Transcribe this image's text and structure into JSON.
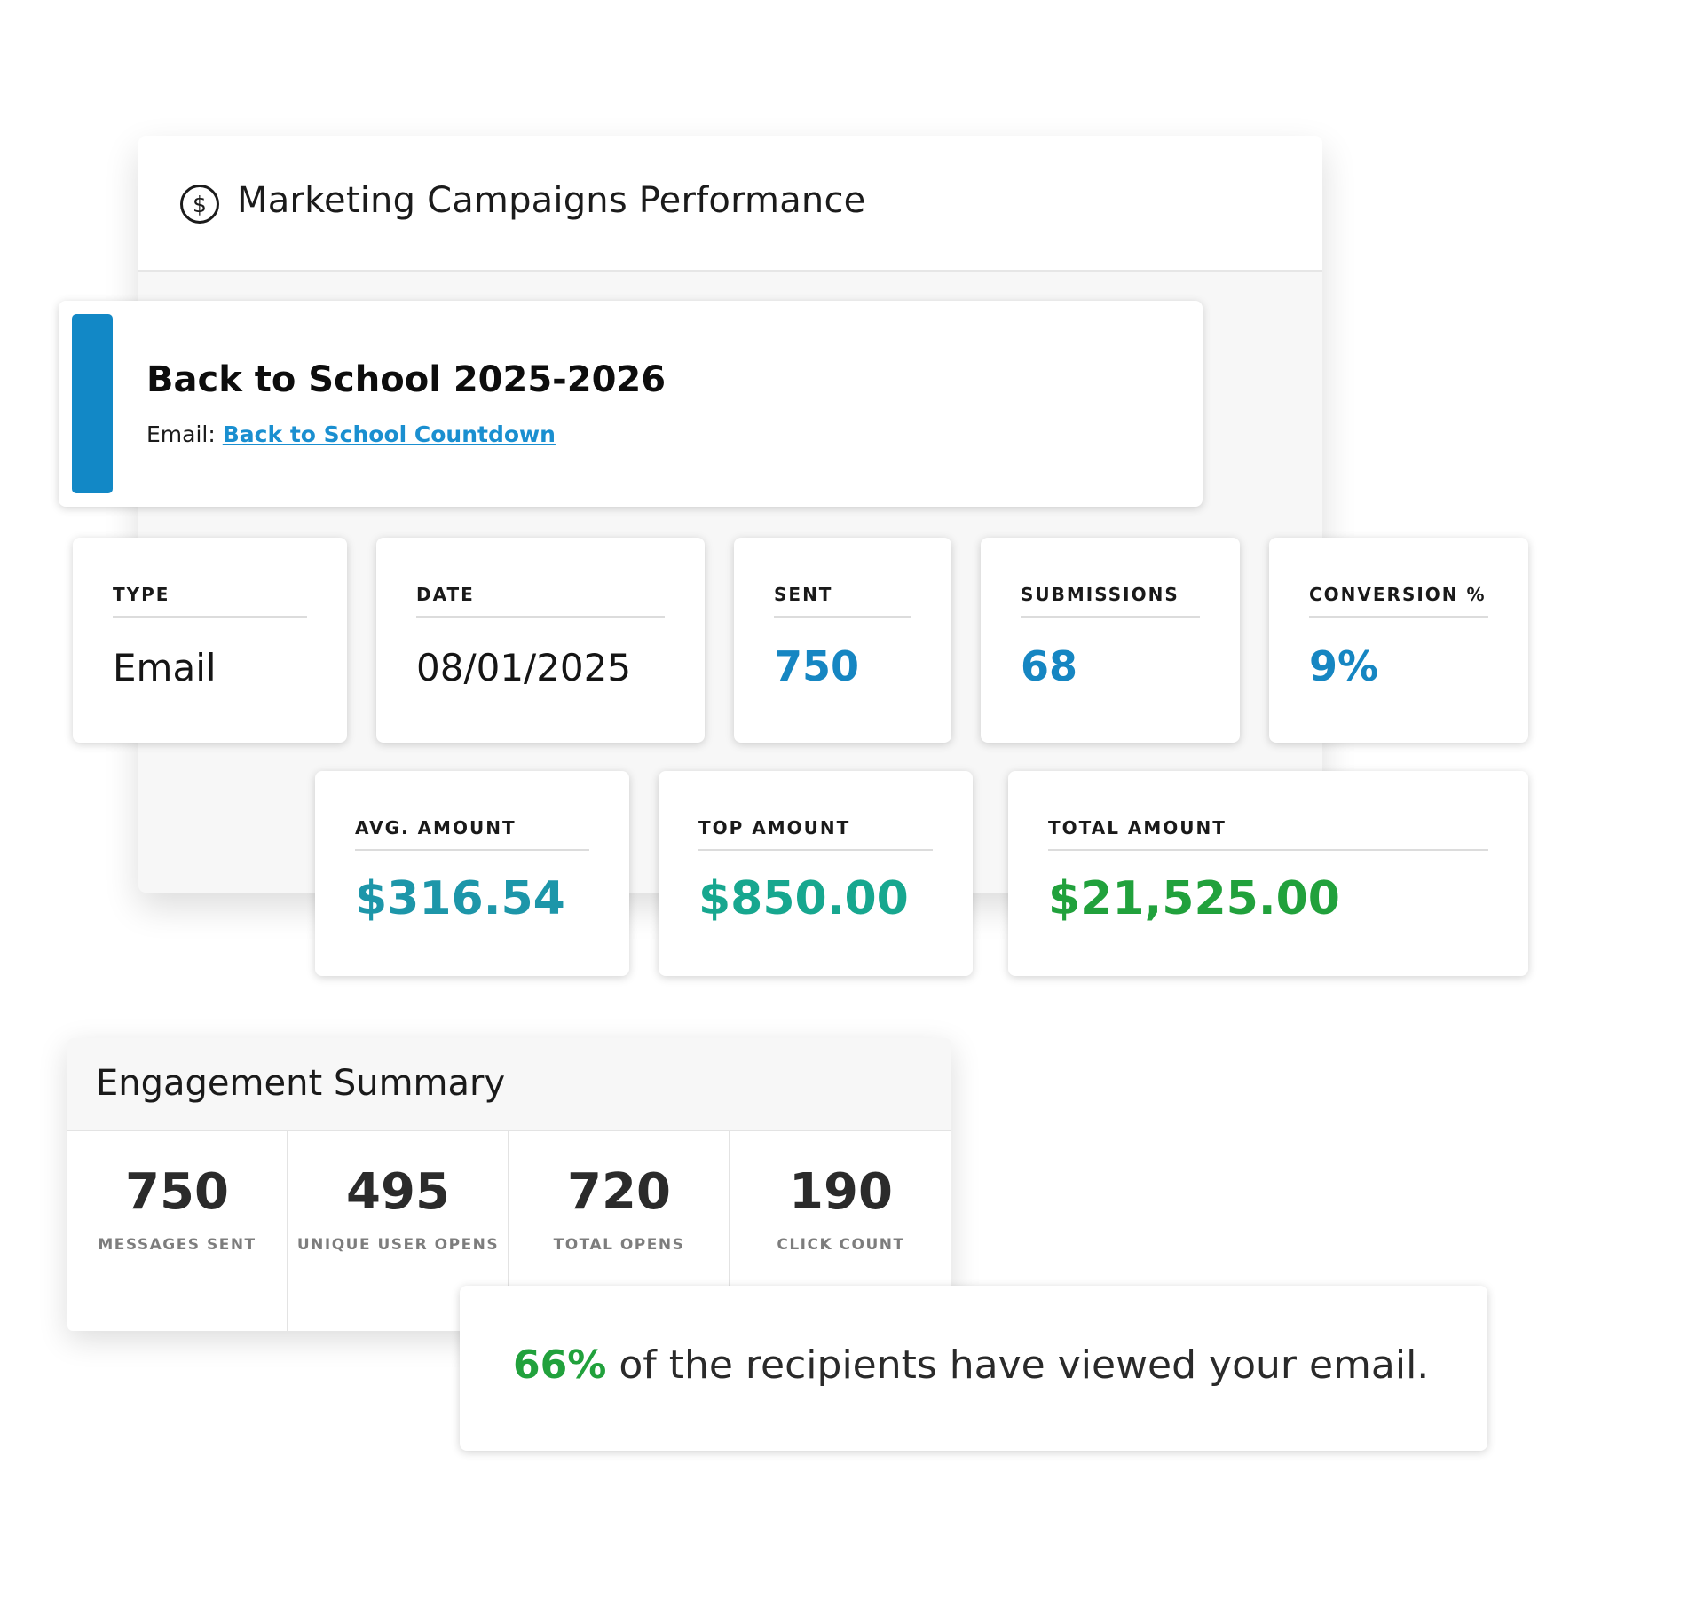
{
  "header": {
    "title": "Marketing Campaigns Performance",
    "icon": "dollar-circle-icon"
  },
  "campaign": {
    "name": "Back to School 2025-2026",
    "email_label": "Email:",
    "email_link": "Back to School Countdown",
    "accent_color": "#1288c6"
  },
  "stats": {
    "type": {
      "label": "TYPE",
      "value": "Email"
    },
    "date": {
      "label": "DATE",
      "value": "08/01/2025"
    },
    "sent": {
      "label": "SENT",
      "value": "750"
    },
    "submissions": {
      "label": "SUBMISSIONS",
      "value": "68"
    },
    "conversion": {
      "label": "CONVERSION %",
      "value": "9%"
    },
    "avg_amount": {
      "label": "AVG. AMOUNT",
      "value": "$316.54"
    },
    "top_amount": {
      "label": "TOP AMOUNT",
      "value": "$850.00"
    },
    "total_amount": {
      "label": "TOTAL AMOUNT",
      "value": "$21,525.00"
    }
  },
  "engagement": {
    "title": "Engagement Summary",
    "metrics": [
      {
        "value": "750",
        "label": "MESSAGES SENT"
      },
      {
        "value": "495",
        "label": "UNIQUE USER OPENS"
      },
      {
        "value": "720",
        "label": "TOTAL OPENS"
      },
      {
        "value": "190",
        "label": "CLICK COUNT"
      }
    ]
  },
  "viewed": {
    "percent": "66%",
    "text": " of the recipients have viewed your email."
  },
  "colors": {
    "blue": "#1686c2",
    "teal": "#1d96a9",
    "sea_green": "#17a78f",
    "green": "#21a13c"
  }
}
